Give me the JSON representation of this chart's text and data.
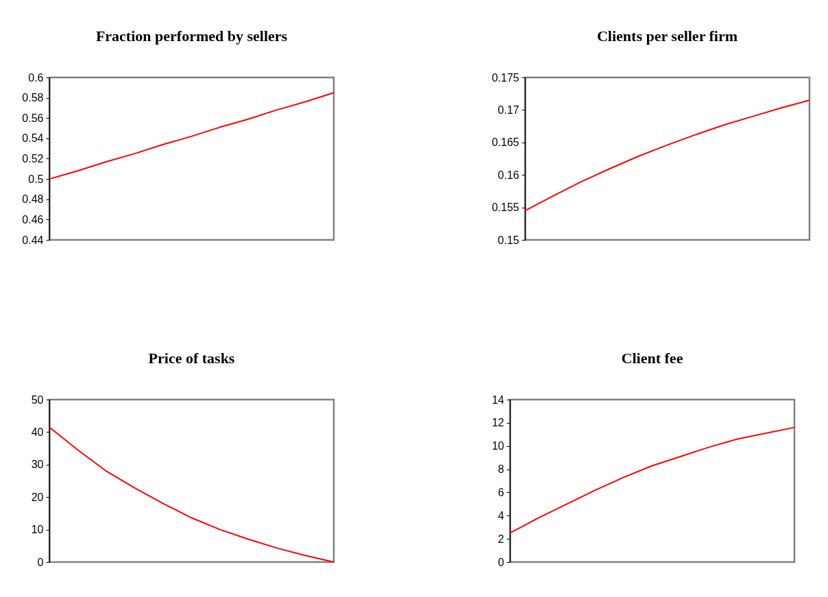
{
  "chart_data": [
    {
      "type": "line",
      "title": "Fraction performed by sellers",
      "categories": [
        null,
        null,
        null,
        null,
        null,
        null,
        null,
        null,
        null,
        null,
        null
      ],
      "tick_labels": "y",
      "series": [
        {
          "color": "#ff0000",
          "values": [
            0.5,
            0.508,
            0.517,
            0.525,
            0.534,
            0.542,
            0.551,
            0.559,
            0.568,
            0.576,
            0.585
          ]
        }
      ],
      "ylim": [
        0.44,
        0.6
      ],
      "yticks": [
        0.44,
        0.46,
        0.48,
        0.5,
        0.52,
        0.54,
        0.56,
        0.58,
        0.6
      ]
    },
    {
      "type": "line",
      "title": "Clients per seller firm",
      "categories": [
        null,
        null,
        null,
        null,
        null,
        null,
        null,
        null,
        null,
        null,
        null
      ],
      "tick_labels": "y",
      "series": [
        {
          "color": "#ff0000",
          "values": [
            0.1545,
            0.1568,
            0.159,
            0.161,
            0.1629,
            0.1646,
            0.1662,
            0.1677,
            0.169,
            0.1703,
            0.1715
          ]
        }
      ],
      "ylim": [
        0.15,
        0.175
      ],
      "yticks": [
        0.15,
        0.155,
        0.16,
        0.165,
        0.17,
        0.175
      ]
    },
    {
      "type": "line",
      "title": "Price of tasks",
      "categories": [
        null,
        null,
        null,
        null,
        null,
        null,
        null,
        null,
        null,
        null,
        null
      ],
      "tick_labels": "y",
      "series": [
        {
          "color": "#ff0000",
          "values": [
            41.5,
            34.5,
            28,
            22.8,
            18,
            13.6,
            10,
            7,
            4.3,
            2,
            0
          ]
        }
      ],
      "ylim": [
        0,
        50
      ],
      "yticks": [
        0,
        10,
        20,
        30,
        40,
        50
      ]
    },
    {
      "type": "line",
      "title": "Client fee",
      "categories": [
        null,
        null,
        null,
        null,
        null,
        null,
        null,
        null,
        null,
        null,
        null
      ],
      "tick_labels": "y",
      "series": [
        {
          "color": "#ff0000",
          "values": [
            2.5,
            3.8,
            5.0,
            6.2,
            7.3,
            8.3,
            9.1,
            9.9,
            10.6,
            11.1,
            11.6
          ]
        }
      ],
      "ylim": [
        0,
        14
      ],
      "yticks": [
        0,
        2,
        4,
        6,
        8,
        10,
        12,
        14
      ]
    }
  ]
}
